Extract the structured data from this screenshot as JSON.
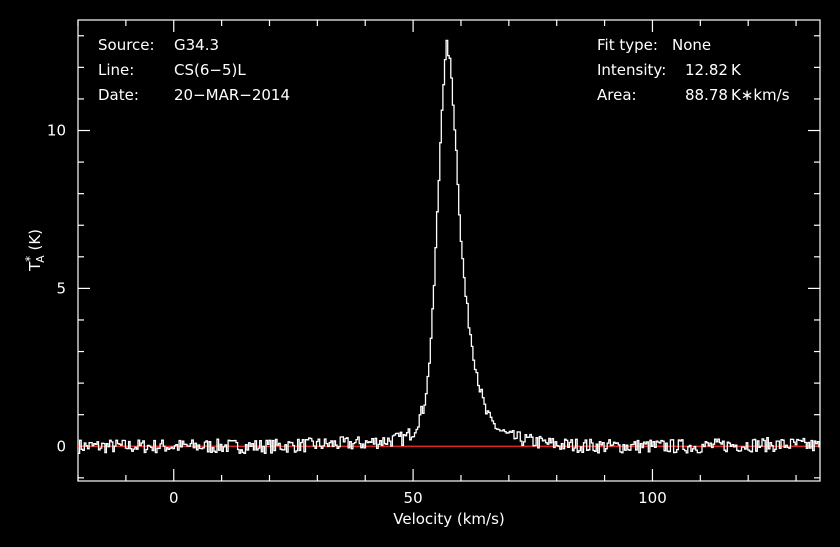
{
  "header": {
    "source_label": "Source:",
    "source_value": "G34.3",
    "line_label": "Line:",
    "line_value": "CS(6−5)L",
    "date_label": "Date:",
    "date_value": "20−MAR−2014",
    "fit_label": "Fit type:",
    "fit_value": "None",
    "intensity_label": "Intensity:",
    "intensity_value": "12.82 K",
    "area_label": "Area:",
    "area_value": "88.78 K∗km/s"
  },
  "chart_data": {
    "type": "line",
    "xlabel": "Velocity (km/s)",
    "ylabel": "T*A (K)",
    "xlim": [
      -20,
      135
    ],
    "ylim": [
      -1.1,
      13.5
    ],
    "x_ticks": [
      0,
      50,
      100
    ],
    "y_ticks": [
      0,
      5,
      10
    ],
    "grid": false,
    "baseline": {
      "y": 0,
      "x_range": [
        50,
        70
      ],
      "color": "#ff2a2a"
    },
    "series": [
      {
        "color": "#ffffff",
        "x": [
          -20,
          -10,
          0,
          10,
          20,
          30,
          40,
          48,
          50,
          52,
          53,
          54,
          55,
          56,
          57,
          58,
          59,
          60,
          61,
          62,
          63,
          64,
          65,
          66,
          68,
          70,
          75,
          80,
          90,
          100,
          110,
          120,
          130,
          135
        ],
        "y": [
          0.0,
          0.0,
          0.0,
          0.0,
          0.0,
          0.05,
          0.1,
          0.25,
          0.5,
          1.2,
          2.2,
          4.3,
          7.6,
          11.2,
          12.82,
          11.5,
          9.0,
          6.2,
          4.5,
          3.4,
          2.5,
          1.7,
          1.1,
          0.8,
          0.5,
          0.3,
          0.15,
          0.05,
          0.0,
          0.0,
          0.0,
          0.05,
          0.05,
          0.0
        ]
      }
    ]
  },
  "colors": {
    "background": "#000000",
    "foreground": "#ffffff",
    "baseline": "#ff2a2a"
  }
}
